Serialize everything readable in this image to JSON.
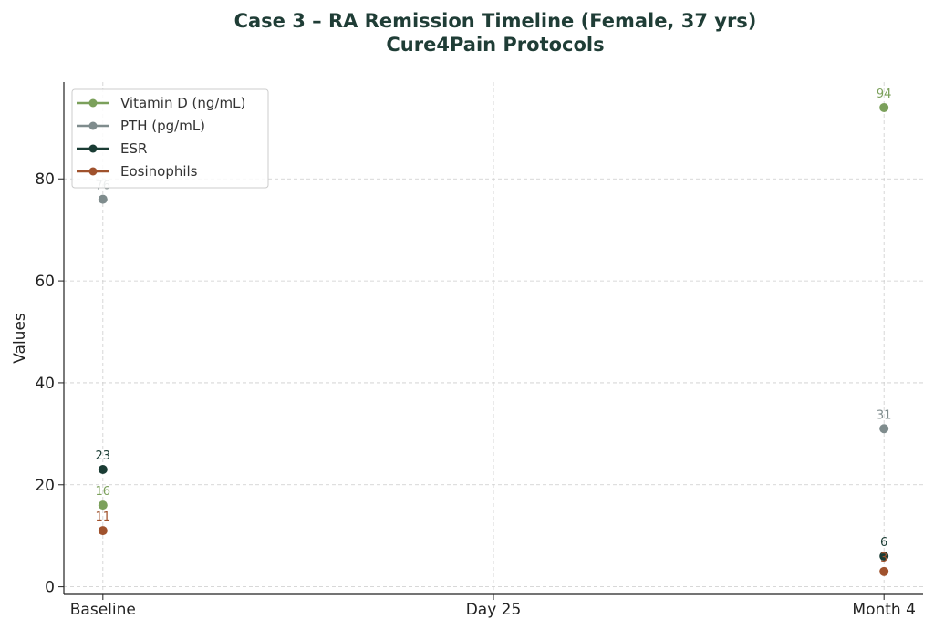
{
  "chart_data": {
    "type": "scatter",
    "title": "Case 3 – RA Remission Timeline (Female, 37 yrs)",
    "subtitle": "Cure4Pain Protocols",
    "xlabel": "",
    "ylabel": "Values",
    "categories": [
      "Baseline",
      "Day 25",
      "Month 4"
    ],
    "ylim": [
      -1.5,
      99
    ],
    "yticks": [
      0,
      20,
      40,
      60,
      80
    ],
    "grid": true,
    "legend_placement": "top-left",
    "series": [
      {
        "name": "Vitamin D (ng/mL)",
        "color": "#7ba05b",
        "values": [
          16,
          null,
          94
        ]
      },
      {
        "name": "PTH (pg/mL)",
        "color": "#7f8c8d",
        "values": [
          76,
          null,
          31
        ]
      },
      {
        "name": "ESR",
        "color": "#1a3c34",
        "values": [
          23,
          null,
          6
        ]
      },
      {
        "name": "Eosinophils",
        "color": "#a0522d",
        "values": [
          11,
          null,
          3
        ]
      }
    ]
  }
}
